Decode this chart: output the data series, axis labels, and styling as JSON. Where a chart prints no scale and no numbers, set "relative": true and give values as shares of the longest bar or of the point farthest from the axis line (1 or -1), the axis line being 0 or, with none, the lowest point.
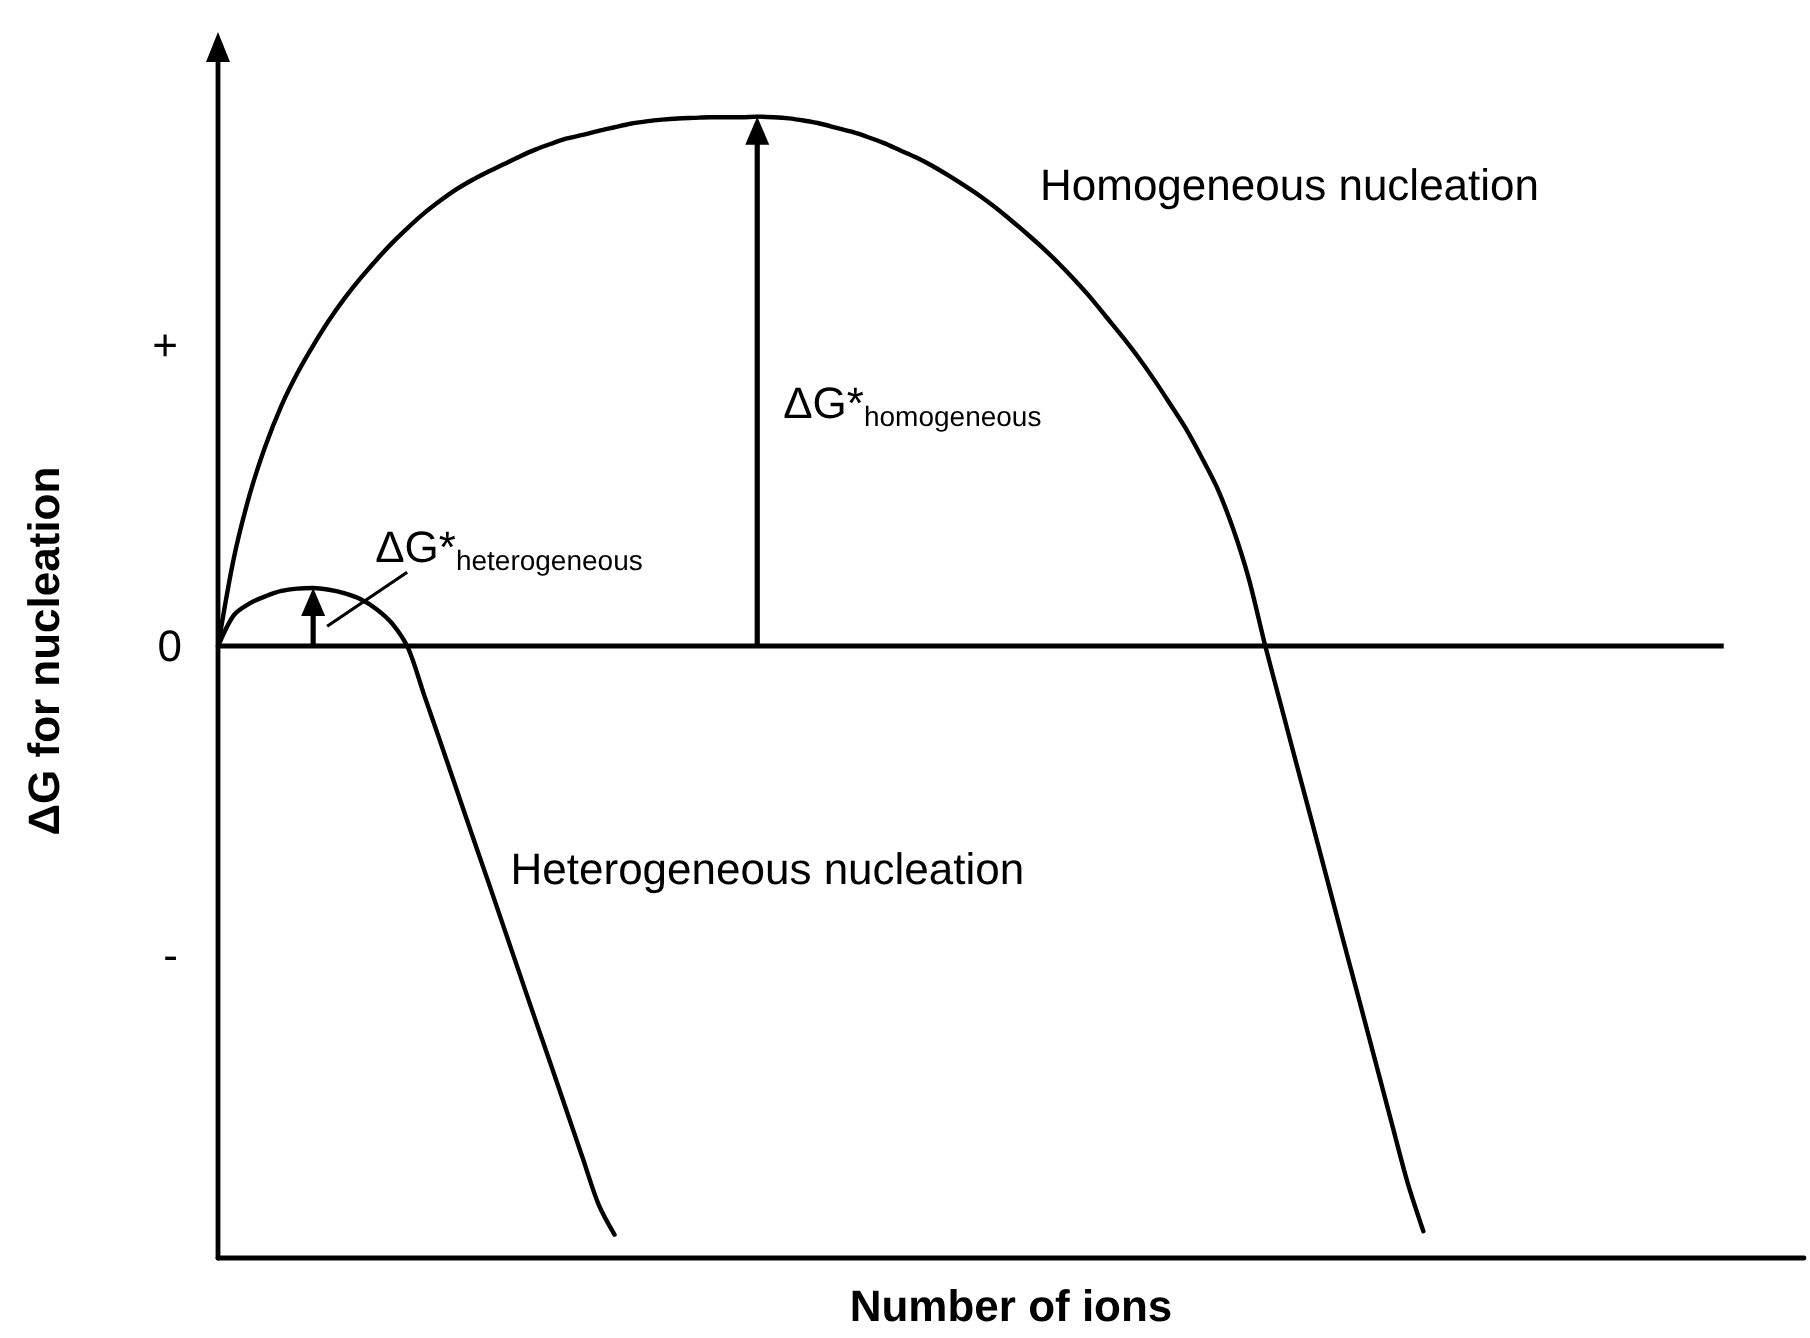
{
  "chart_data": {
    "type": "line",
    "relative": true,
    "xlabel": "Number of ions",
    "ylabel": "ΔG for nucleation",
    "marker": "none",
    "categories": [
      null,
      null,
      null,
      null,
      null,
      null,
      null,
      null,
      null,
      null,
      null,
      null,
      null,
      null,
      null,
      null,
      null,
      null,
      null,
      null,
      null,
      null,
      null,
      null,
      null,
      null,
      null,
      null,
      null,
      null,
      null,
      null,
      null,
      null,
      null,
      null,
      null,
      null,
      null,
      null,
      null,
      null,
      null,
      null,
      null,
      null,
      null,
      null,
      null,
      null,
      null,
      null,
      null,
      null,
      null,
      null,
      null,
      null,
      null,
      null,
      null,
      null,
      null,
      null,
      null,
      null,
      null,
      null,
      null,
      null,
      null,
      null,
      null,
      null,
      null,
      null,
      null,
      null,
      null,
      null,
      null,
      null,
      null,
      null,
      null,
      null,
      null,
      null,
      null,
      null,
      null,
      null,
      null,
      null,
      null,
      null,
      null,
      null,
      null,
      null,
      null
    ],
    "ref_lines": [
      {
        "axis": "y",
        "value": 0,
        "label": "0"
      }
    ],
    "series": [
      {
        "name": "Homogeneous nucleation",
        "color": "#000000",
        "values": [
          0,
          0.15,
          0.258,
          0.341,
          0.409,
          0.464,
          0.511,
          0.554,
          0.592,
          0.626,
          0.657,
          0.686,
          0.712,
          0.736,
          0.757,
          0.776,
          0.792,
          0.806,
          0.819,
          0.832,
          0.844,
          0.854,
          0.863,
          0.869,
          0.876,
          0.882,
          0.888,
          0.892,
          0.895,
          0.897,
          0.898,
          0.899,
          0.899,
          0.899,
          0.9,
          0.899,
          0.897,
          0.893,
          0.888,
          0.881,
          0.874,
          0.865,
          0.855,
          0.843,
          0.831,
          0.817,
          0.801,
          0.784,
          0.766,
          0.746,
          0.724,
          0.701,
          0.677,
          0.651,
          0.623,
          0.593,
          0.56,
          0.527,
          0.492,
          0.454,
          0.413,
          0.371,
          0.322,
          0.269,
          0.2,
          0.114,
          0.004,
          -0.098,
          -0.2,
          -0.301,
          -0.403,
          -0.505,
          -0.606,
          -0.708,
          -0.81,
          -0.911,
          -0.994,
          null,
          null,
          null,
          null,
          null,
          null,
          null,
          null,
          null,
          null,
          null,
          null,
          null,
          null,
          null,
          null,
          null,
          null,
          null,
          null,
          null,
          null,
          null,
          null
        ]
      },
      {
        "name": "Heterogeneous nucleation",
        "color": "#000000",
        "values": [
          0,
          0.053,
          0.073,
          0.085,
          0.094,
          0.098,
          0.099,
          0.096,
          0.09,
          0.08,
          0.063,
          0.038,
          -0.004,
          -0.083,
          -0.161,
          -0.24,
          -0.319,
          -0.397,
          -0.476,
          -0.555,
          -0.634,
          -0.712,
          -0.791,
          -0.87,
          -0.949,
          -1,
          null,
          null,
          null,
          null,
          null,
          null,
          null,
          null,
          null,
          null,
          null,
          null,
          null,
          null,
          null,
          null,
          null,
          null,
          null,
          null,
          null,
          null,
          null,
          null,
          null,
          null,
          null,
          null,
          null,
          null,
          null,
          null,
          null,
          null,
          null,
          null,
          null,
          null,
          null,
          null,
          null,
          null,
          null,
          null,
          null,
          null,
          null,
          null,
          null,
          null,
          null,
          null,
          null,
          null,
          null,
          null,
          null,
          null,
          null,
          null,
          null,
          null,
          null,
          null,
          null,
          null,
          null,
          null,
          null,
          null,
          null,
          null,
          null,
          null,
          null
        ]
      }
    ],
    "annotations": [
      "+",
      "ΔG*$_{homogeneous}$",
      "ΔG*$_{heterogeneous}$",
      "-"
    ]
  }
}
